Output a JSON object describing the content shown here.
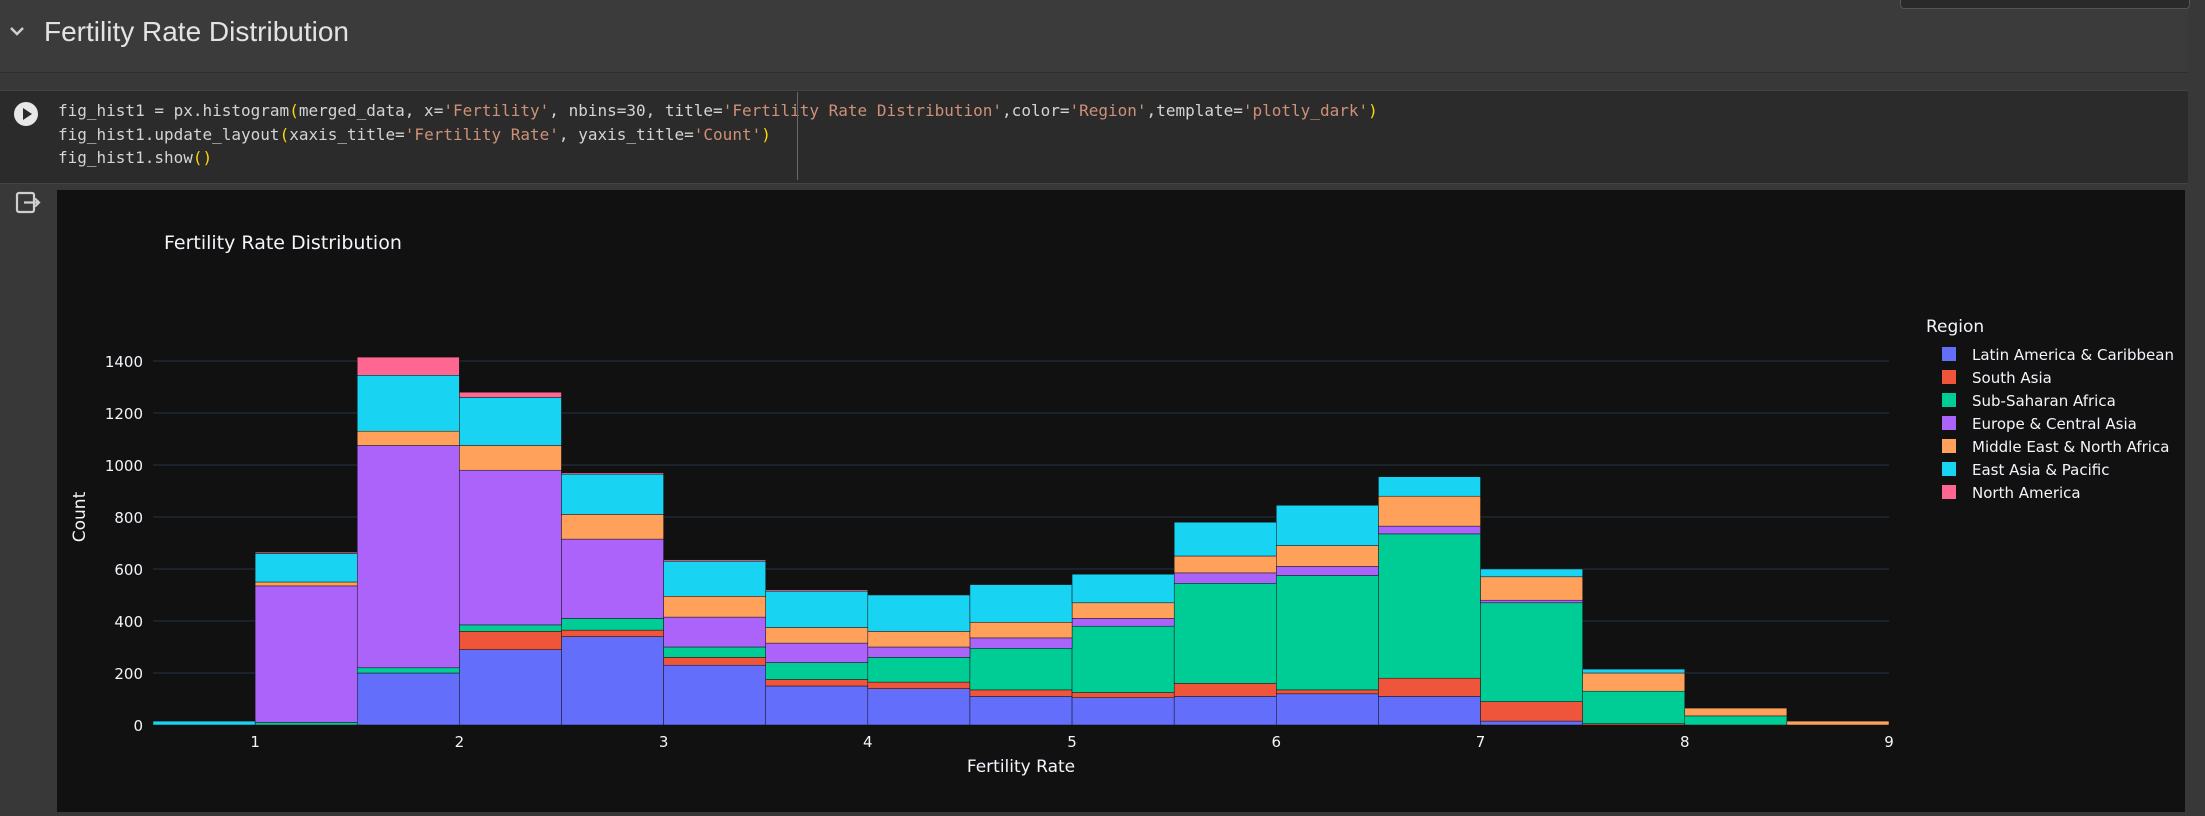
{
  "section": {
    "title": "Fertility Rate Distribution"
  },
  "code": {
    "line1": {
      "a": "fig_hist1 = px.histogram",
      "b": "(",
      "c": "merged_data, x=",
      "d": "'Fertility'",
      "e": ", nbins=30, title=",
      "f": "'Fertility Rate Distribution'",
      "g": ",color=",
      "h": "'Region'",
      "i": ",template=",
      "j": "'plotly_dark'",
      "k": ")"
    },
    "line2": {
      "a": "fig_hist1.update_layout",
      "b": "(",
      "c": "xaxis_title=",
      "d": "'Fertility Rate'",
      "e": ", yaxis_title=",
      "f": "'Count'",
      "g": ")"
    },
    "line3": {
      "a": "fig_hist1.show",
      "b": "()"
    }
  },
  "chart_data": {
    "type": "bar",
    "title": "Fertility Rate Distribution",
    "xlabel": "Fertility Rate",
    "ylabel": "Count",
    "xlim": [
      0.5,
      9
    ],
    "ylim": [
      0,
      1500
    ],
    "xticks": [
      1,
      2,
      3,
      4,
      5,
      6,
      7,
      8,
      9
    ],
    "yticks": [
      0,
      200,
      400,
      600,
      800,
      1000,
      1200,
      1400
    ],
    "bin_edges": [
      0.5,
      1.0,
      1.5,
      2.0,
      2.5,
      3.0,
      3.5,
      4.0,
      4.5,
      5.0,
      5.5,
      6.0,
      6.5,
      7.0,
      7.5,
      8.0,
      8.5,
      9.0
    ],
    "legend_title": "Region",
    "legend_position": "right",
    "grid": true,
    "series": [
      {
        "name": "Latin America & Caribbean",
        "color": "#636efa",
        "values": [
          0,
          0,
          200,
          290,
          340,
          230,
          150,
          140,
          110,
          105,
          110,
          120,
          110,
          15,
          0,
          0,
          0
        ]
      },
      {
        "name": "South Asia",
        "color": "#ef553b",
        "values": [
          0,
          0,
          0,
          70,
          25,
          30,
          25,
          25,
          25,
          20,
          50,
          15,
          70,
          75,
          5,
          0,
          0
        ]
      },
      {
        "name": "Sub-Saharan Africa",
        "color": "#00cc96",
        "values": [
          0,
          10,
          20,
          25,
          45,
          40,
          65,
          95,
          160,
          255,
          385,
          440,
          555,
          380,
          125,
          35,
          0
        ]
      },
      {
        "name": "Europe & Central Asia",
        "color": "#ab63fa",
        "values": [
          0,
          525,
          855,
          595,
          305,
          115,
          75,
          40,
          40,
          30,
          40,
          35,
          30,
          10,
          0,
          0,
          0
        ]
      },
      {
        "name": "Middle East & North Africa",
        "color": "#ffa15a",
        "values": [
          0,
          15,
          55,
          95,
          95,
          80,
          60,
          60,
          60,
          60,
          65,
          80,
          115,
          90,
          70,
          30,
          15
        ]
      },
      {
        "name": "East Asia & Pacific",
        "color": "#19d3f3",
        "values": [
          15,
          110,
          215,
          185,
          155,
          135,
          140,
          140,
          145,
          110,
          130,
          155,
          75,
          30,
          15,
          0,
          0
        ]
      },
      {
        "name": "North America",
        "color": "#ff6692",
        "values": [
          0,
          5,
          70,
          20,
          5,
          5,
          5,
          0,
          0,
          0,
          0,
          0,
          0,
          0,
          0,
          0,
          0
        ]
      }
    ]
  }
}
